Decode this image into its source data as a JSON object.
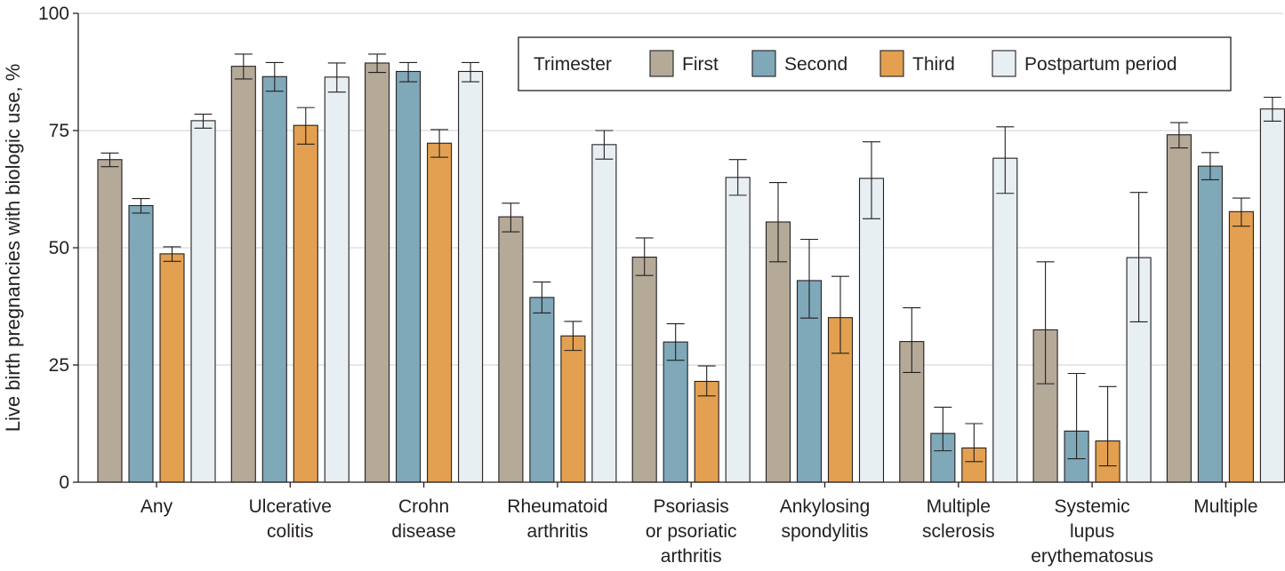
{
  "chart_data": {
    "type": "bar",
    "title": "",
    "xlabel": "",
    "ylabel": "Live birth pregnancies with biologic use, %",
    "ylim": [
      0,
      100
    ],
    "yticks": [
      "0",
      "25",
      "50",
      "75",
      "100"
    ],
    "grid": true,
    "legend_title": "Trimester",
    "legend_position": "top-right",
    "categories": [
      [
        "Any"
      ],
      [
        "Ulcerative",
        "colitis"
      ],
      [
        "Crohn",
        "disease"
      ],
      [
        "Rheumatoid",
        "arthritis"
      ],
      [
        "Psoriasis",
        "or psoriatic",
        "arthritis"
      ],
      [
        "Ankylosing",
        "spondylitis"
      ],
      [
        "Multiple",
        "sclerosis"
      ],
      [
        "Systemic",
        "lupus",
        "erythematosus"
      ],
      [
        "Multiple"
      ]
    ],
    "series": [
      {
        "name": "First",
        "color": "#b5a998",
        "values": [
          68.8,
          88.7,
          89.4,
          56.6,
          48.0,
          55.5,
          30.0,
          32.5,
          74.1
        ],
        "err_low": [
          67.3,
          86.0,
          87.4,
          53.4,
          44.1,
          47.0,
          23.4,
          21.0,
          71.3
        ],
        "err_high": [
          70.2,
          91.3,
          91.3,
          59.5,
          52.1,
          63.9,
          37.2,
          47.0,
          76.7
        ]
      },
      {
        "name": "Second",
        "color": "#7fa8b9",
        "values": [
          59.0,
          86.5,
          87.6,
          39.4,
          29.9,
          43.0,
          10.4,
          10.9,
          67.4
        ],
        "err_low": [
          57.4,
          83.4,
          85.4,
          36.1,
          26.0,
          35.0,
          6.7,
          5.0,
          64.5
        ],
        "err_high": [
          60.5,
          89.5,
          89.5,
          42.7,
          33.8,
          51.8,
          16.0,
          23.2,
          70.3
        ]
      },
      {
        "name": "Third",
        "color": "#e3a050",
        "values": [
          48.7,
          76.1,
          72.3,
          31.2,
          21.5,
          35.1,
          7.3,
          8.8,
          57.7
        ],
        "err_low": [
          47.1,
          72.1,
          69.3,
          28.1,
          18.4,
          27.5,
          4.4,
          3.5,
          54.6
        ],
        "err_high": [
          50.2,
          79.9,
          75.2,
          34.3,
          24.8,
          43.9,
          12.5,
          20.4,
          60.6
        ]
      },
      {
        "name": "Postpartum period",
        "color": "#e8eff3",
        "values": [
          77.1,
          86.4,
          87.6,
          72.0,
          65.0,
          64.8,
          69.1,
          47.9,
          79.6
        ],
        "err_low": [
          75.5,
          83.2,
          85.4,
          68.9,
          61.2,
          56.2,
          61.6,
          34.2,
          77.0
        ],
        "err_high": [
          78.5,
          89.4,
          89.5,
          75.0,
          68.8,
          72.6,
          75.8,
          61.8,
          82.1
        ]
      }
    ]
  }
}
